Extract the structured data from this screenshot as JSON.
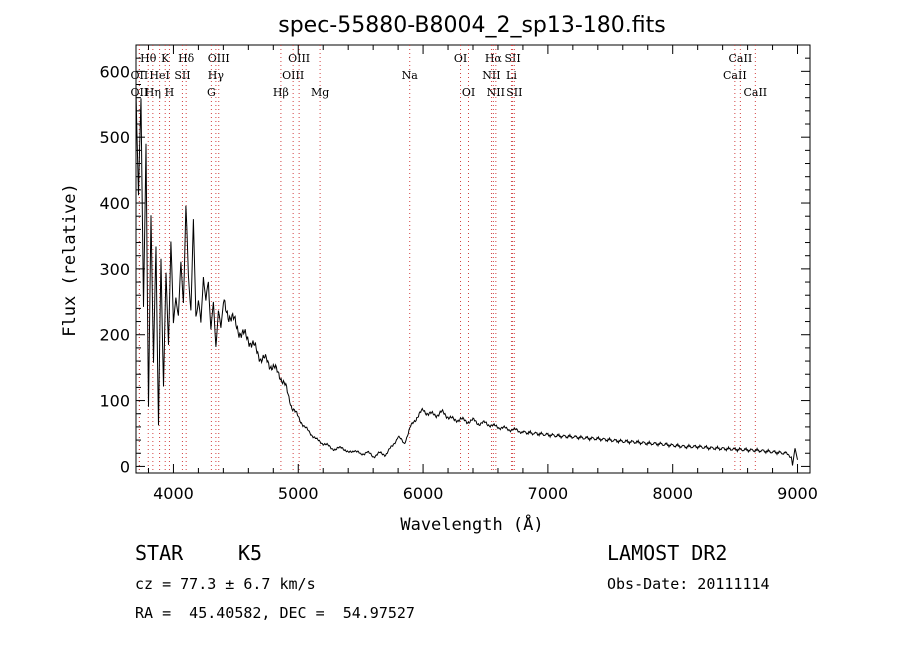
{
  "chart_data": {
    "type": "line",
    "title": "spec-55880-B8004_2_sp13-180.fits",
    "xlabel": "Wavelength (Å)",
    "ylabel": "Flux (relative)",
    "xlim": [
      3700,
      9100
    ],
    "ylim": [
      -10,
      640
    ],
    "grid": false,
    "x_ticks": [
      4000,
      5000,
      6000,
      7000,
      8000,
      9000
    ],
    "y_ticks": [
      0,
      100,
      200,
      300,
      400,
      500,
      600
    ],
    "series": [
      {
        "x": [
          3700,
          3720,
          3740,
          3760,
          3780,
          3800,
          3820,
          3840,
          3860,
          3880,
          3900,
          3920,
          3940,
          3960,
          3980,
          4000,
          4020,
          4040,
          4060,
          4080,
          4100,
          4120,
          4140,
          4160,
          4180,
          4200,
          4220,
          4240,
          4260,
          4280,
          4300,
          4320,
          4340,
          4360,
          4380,
          4400,
          4450,
          4500,
          4550,
          4600,
          4650,
          4700,
          4750,
          4800,
          4850,
          4900,
          4950,
          5000,
          5050,
          5100,
          5150,
          5200,
          5250,
          5300,
          5350,
          5400,
          5450,
          5500,
          5550,
          5600,
          5650,
          5700,
          5750,
          5800,
          5850,
          5900,
          5950,
          6000,
          6050,
          6100,
          6150,
          6200,
          6250,
          6300,
          6350,
          6400,
          6450,
          6500,
          6550,
          6600,
          6650,
          6700,
          6750,
          6800,
          6900,
          7000,
          7100,
          7200,
          7300,
          7400,
          7500,
          7600,
          7700,
          7800,
          7900,
          8000,
          8100,
          8200,
          8300,
          8400,
          8500,
          8600,
          8700,
          8800,
          8900,
          8950,
          8960,
          8980,
          9000
        ],
        "y": [
          600,
          420,
          560,
          250,
          480,
          90,
          380,
          150,
          330,
          60,
          300,
          120,
          280,
          180,
          340,
          210,
          260,
          230,
          310,
          260,
          400,
          300,
          250,
          380,
          240,
          260,
          220,
          300,
          250,
          280,
          210,
          240,
          180,
          230,
          200,
          245,
          230,
          215,
          200,
          195,
          180,
          165,
          160,
          150,
          140,
          120,
          90,
          75,
          60,
          50,
          40,
          35,
          30,
          25,
          30,
          20,
          25,
          18,
          22,
          15,
          20,
          18,
          30,
          45,
          35,
          60,
          75,
          85,
          80,
          78,
          82,
          76,
          70,
          72,
          68,
          70,
          65,
          66,
          62,
          60,
          58,
          56,
          55,
          52,
          50,
          48,
          46,
          45,
          43,
          42,
          40,
          38,
          37,
          35,
          34,
          32,
          30,
          30,
          28,
          27,
          26,
          25,
          24,
          22,
          20,
          15,
          0,
          25,
          10
        ]
      }
    ],
    "line_annotations": [
      {
        "label": "Hθ",
        "x": 3798,
        "row": 0
      },
      {
        "label": "K",
        "x": 3934,
        "row": 0
      },
      {
        "label": "Hδ",
        "x": 4102,
        "row": 0
      },
      {
        "label": "OIII",
        "x": 4363,
        "row": 0
      },
      {
        "label": "OIII",
        "x": 5007,
        "row": 0
      },
      {
        "label": "OI",
        "x": 6300,
        "row": 0
      },
      {
        "label": "Hα",
        "x": 6563,
        "row": 0
      },
      {
        "label": "SII",
        "x": 6717,
        "row": 0
      },
      {
        "label": "CaII",
        "x": 8542,
        "row": 0
      },
      {
        "label": "OII",
        "x": 3727,
        "row": 1
      },
      {
        "label": "HeI",
        "x": 3889,
        "row": 1
      },
      {
        "label": "SII",
        "x": 4072,
        "row": 1
      },
      {
        "label": "Hγ",
        "x": 4340,
        "row": 1
      },
      {
        "label": "OIII",
        "x": 4959,
        "row": 1
      },
      {
        "label": "Na",
        "x": 5893,
        "row": 1
      },
      {
        "label": "NII",
        "x": 6548,
        "row": 1
      },
      {
        "label": "Li",
        "x": 6708,
        "row": 1
      },
      {
        "label": "CaII",
        "x": 8498,
        "row": 1
      },
      {
        "label": "OII",
        "x": 3727,
        "row": 2
      },
      {
        "label": "Hη",
        "x": 3835,
        "row": 2
      },
      {
        "label": "H",
        "x": 3968,
        "row": 2
      },
      {
        "label": "G",
        "x": 4304,
        "row": 2
      },
      {
        "label": "Hβ",
        "x": 4861,
        "row": 2
      },
      {
        "label": "Mg",
        "x": 5175,
        "row": 2
      },
      {
        "label": "OI",
        "x": 6364,
        "row": 2
      },
      {
        "label": "NII",
        "x": 6583,
        "row": 2
      },
      {
        "label": "SII",
        "x": 6731,
        "row": 2
      },
      {
        "label": "CaII",
        "x": 8662,
        "row": 2
      }
    ]
  },
  "info": {
    "class_label": "STAR",
    "subclass": "K5",
    "survey": "LAMOST DR2",
    "cz_line": "cz = 77.3 ± 6.7 km/s",
    "obs_date": "Obs-Date: 20111114",
    "radec_line": "RA =  45.40582, DEC =  54.97527"
  }
}
